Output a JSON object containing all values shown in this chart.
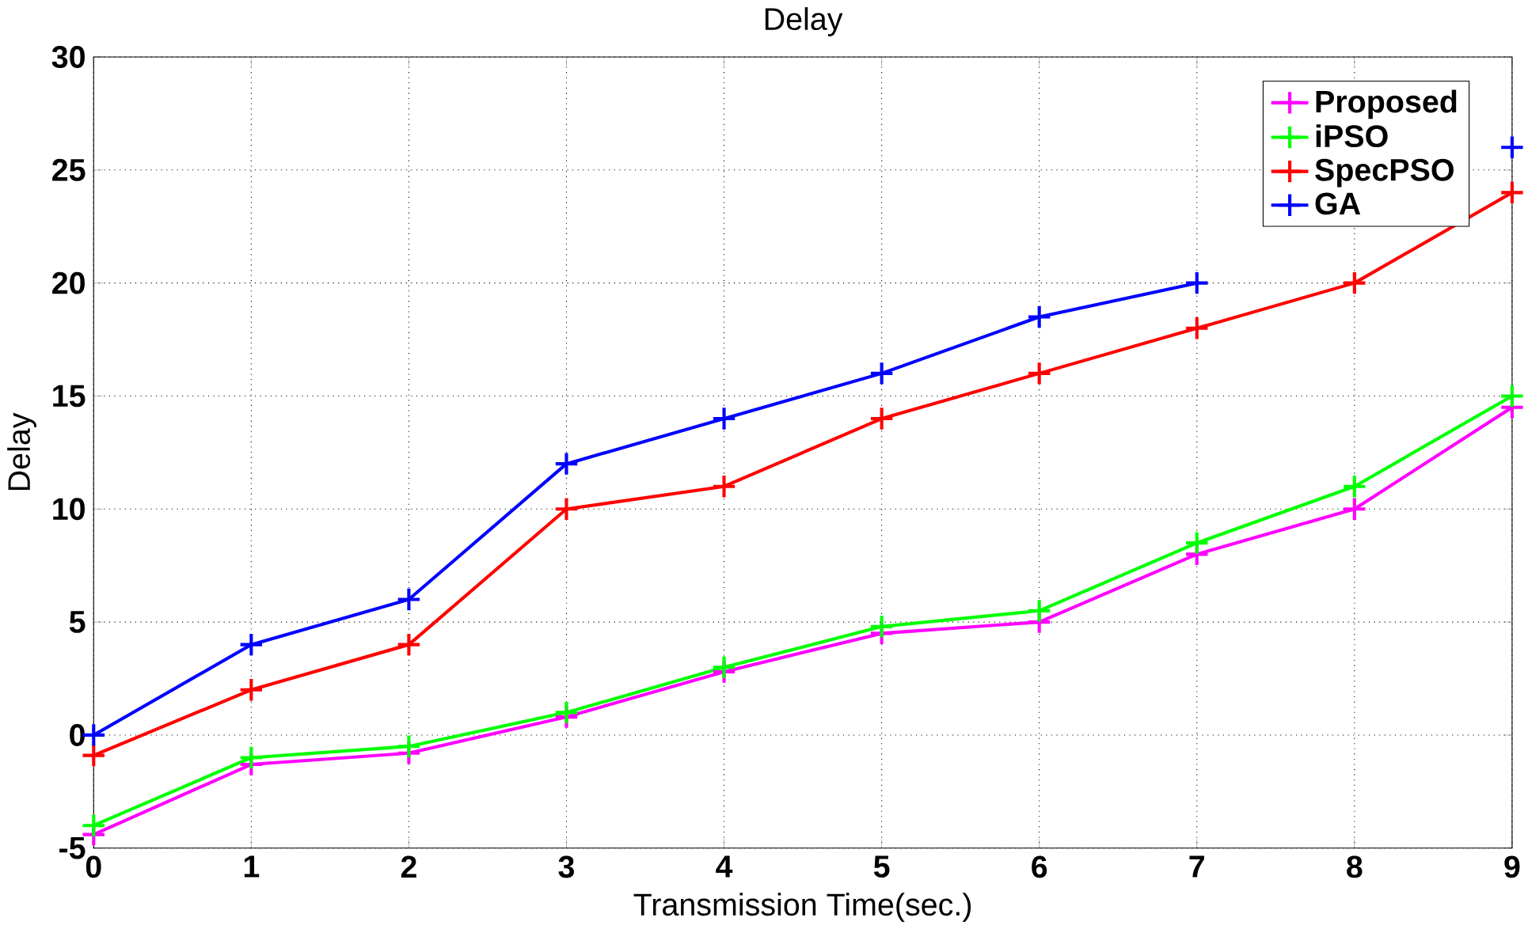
{
  "chart_data": {
    "type": "line",
    "title": "Delay",
    "xlabel": "Transmission Time(sec.)",
    "ylabel": "Delay",
    "x": [
      0,
      1,
      2,
      3,
      4,
      5,
      6,
      7,
      8,
      9
    ],
    "xlim": [
      0,
      9
    ],
    "xticks": [
      0,
      1,
      2,
      3,
      4,
      5,
      6,
      7,
      8,
      9
    ],
    "ylim": [
      -5,
      30
    ],
    "yticks": [
      -5,
      0,
      5,
      10,
      15,
      20,
      25,
      30
    ],
    "grid": true,
    "legend": "top right",
    "marker": "cross",
    "line_style": "solid",
    "series": [
      {
        "name": "Proposed",
        "color": "#ff00ff",
        "values": [
          -4.4,
          -1.3,
          -0.8,
          0.8,
          2.8,
          4.5,
          5,
          8,
          10,
          14.5
        ]
      },
      {
        "name": "iPSO",
        "color": "#00ff00",
        "values": [
          -4,
          -1,
          -0.5,
          1,
          3,
          4.8,
          5.5,
          8.5,
          11,
          15
        ]
      },
      {
        "name": "SpecPSO",
        "color": "#ff0000",
        "values": [
          -0.9,
          2,
          4,
          10,
          11,
          14,
          16,
          18,
          20,
          24
        ]
      },
      {
        "name": "GA",
        "color": "#0000ff",
        "values": [
          0,
          4,
          6,
          12,
          14,
          16,
          18.5,
          20,
          null,
          26
        ]
      }
    ]
  }
}
